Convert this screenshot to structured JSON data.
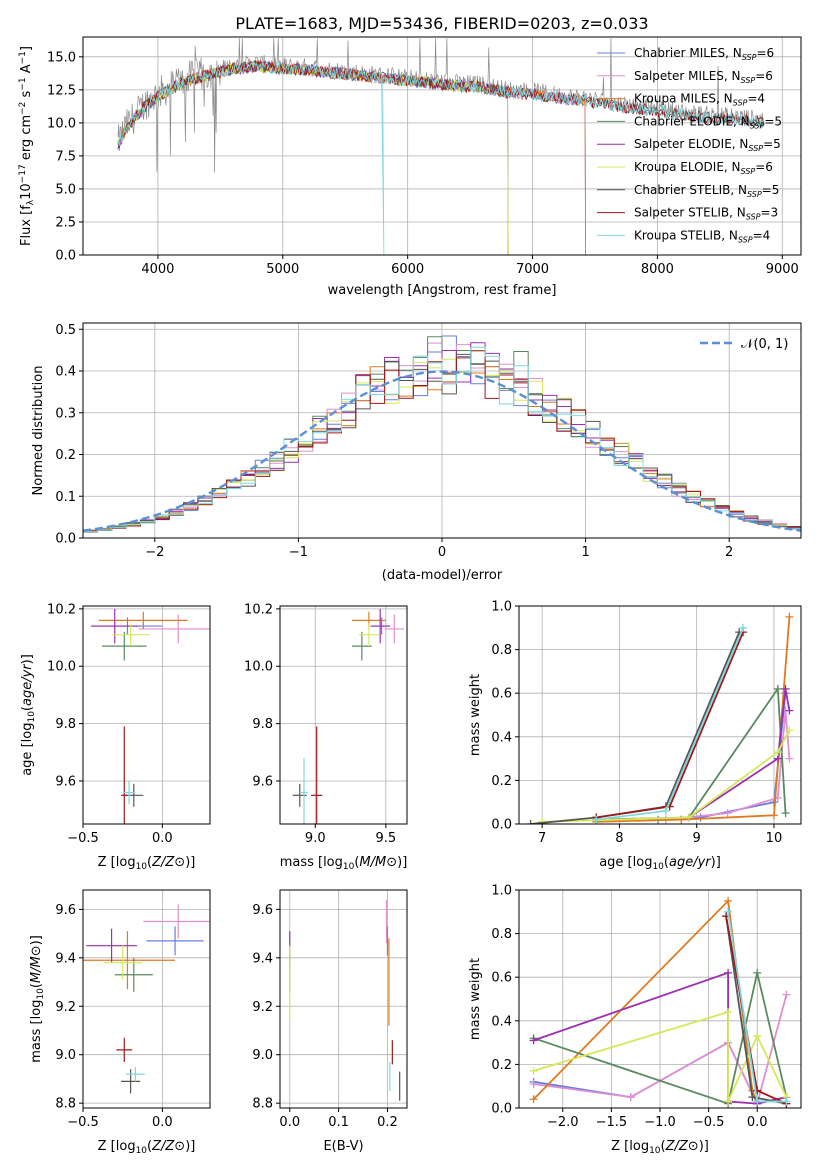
{
  "title": "PLATE=1683, MJD=53436, FIBERID=0203, z=0.033",
  "colors": {
    "Chabrier MILES": "#6a7fe0",
    "Salpeter MILES": "#e08fd0",
    "Kroupa MILES": "#e07a20",
    "Chabrier ELODIE": "#5a8a60",
    "Salpeter ELODIE": "#9a2fb0",
    "Kroupa ELODIE": "#d4e85a",
    "Chabrier STELIB": "#555555",
    "Salpeter STELIB": "#a01818",
    "Kroupa STELIB": "#7fd8e0",
    "gaussian": "#5b8fd6"
  },
  "chart_data": [
    {
      "id": "spectrum",
      "type": "line",
      "xlabel": "wavelength [Angstrom, rest frame]",
      "ylabel_parts": [
        "Flux [f",
        "λ",
        "10",
        "−17",
        " erg cm",
        "−2",
        " s",
        "−1",
        " A",
        "−1",
        "]"
      ],
      "xlim": [
        3400,
        9150
      ],
      "ylim": [
        0,
        16.5
      ],
      "xticks": [
        4000,
        5000,
        6000,
        7000,
        8000,
        9000
      ],
      "yticks": [
        0.0,
        2.5,
        5.0,
        7.5,
        10.0,
        12.5,
        15.0
      ],
      "legend": [
        {
          "name": "Chabrier MILES",
          "nssp": "6"
        },
        {
          "name": "Salpeter MILES",
          "nssp": "6"
        },
        {
          "name": "Kroupa MILES",
          "nssp": "4"
        },
        {
          "name": "Chabrier ELODIE",
          "nssp": "5"
        },
        {
          "name": "Salpeter ELODIE",
          "nssp": "5"
        },
        {
          "name": "Kroupa ELODIE",
          "nssp": "6"
        },
        {
          "name": "Chabrier STELIB",
          "nssp": "5"
        },
        {
          "name": "Salpeter STELIB",
          "nssp": "3"
        },
        {
          "name": "Kroupa STELIB",
          "nssp": "4"
        }
      ],
      "data_envelope": {
        "x": [
          3680,
          3750,
          3900,
          4000,
          4200,
          4400,
          4600,
          4800,
          5000,
          5200,
          5400,
          5600,
          5800,
          6000,
          6200,
          6400,
          6600,
          6800,
          7000,
          7200,
          7400,
          7600,
          7800,
          8000,
          8200,
          8400,
          8600,
          8800
        ],
        "y": [
          8.5,
          9.8,
          11.5,
          12.2,
          13.3,
          13.8,
          14.3,
          14.5,
          14.3,
          14.2,
          14.0,
          13.8,
          13.6,
          13.4,
          13.2,
          13.0,
          12.9,
          12.5,
          12.4,
          12.1,
          11.9,
          11.6,
          11.3,
          11.1,
          10.8,
          10.6,
          10.5,
          10.3
        ]
      }
    },
    {
      "id": "residuals",
      "type": "bar",
      "xlabel": "(data-model)/error",
      "ylabel": "Normed distribution",
      "xlim": [
        -2.5,
        2.5
      ],
      "ylim": [
        0,
        0.515
      ],
      "xticks": [
        -2,
        -1,
        0,
        1,
        2
      ],
      "yticks": [
        0.0,
        0.1,
        0.2,
        0.3,
        0.4,
        0.5
      ],
      "gaussian_label": "𝒩(0, 1)",
      "bin_width": 0.1,
      "approx_peak": 0.49
    },
    {
      "id": "age_vs_Z",
      "type": "scatter",
      "xlabel": "Z [log10(Z/Z⊙)]",
      "ylabel": "age [log10(age/yr)]",
      "xlim": [
        -0.5,
        0.3
      ],
      "ylim": [
        9.45,
        10.21
      ],
      "xticks": [
        -0.5,
        0.0
      ],
      "yticks": [
        9.6,
        9.8,
        10.0,
        10.2
      ],
      "points": [
        {
          "model": "Chabrier MILES",
          "x": -0.22,
          "y": 10.14,
          "xerr": 0.22,
          "yerr": 0.03
        },
        {
          "model": "Salpeter MILES",
          "x": 0.1,
          "y": 10.13,
          "xerr": 0.25,
          "yerr": 0.05
        },
        {
          "model": "Kroupa MILES",
          "x": -0.12,
          "y": 10.16,
          "xerr": 0.28,
          "yerr": 0.03
        },
        {
          "model": "Chabrier ELODIE",
          "x": -0.24,
          "y": 10.07,
          "xerr": 0.14,
          "yerr": 0.05
        },
        {
          "model": "Salpeter ELODIE",
          "x": -0.3,
          "y": 10.14,
          "xerr": 0.15,
          "yerr": 0.06
        },
        {
          "model": "Kroupa ELODIE",
          "x": -0.2,
          "y": 10.11,
          "xerr": 0.12,
          "yerr": 0.04
        },
        {
          "model": "Chabrier STELIB",
          "x": -0.18,
          "y": 9.55,
          "xerr": 0.06,
          "yerr": 0.04
        },
        {
          "model": "Salpeter STELIB",
          "x": -0.24,
          "y": 9.55,
          "xerr": 0.02,
          "yerr": 0.24
        },
        {
          "model": "Kroupa STELIB",
          "x": -0.21,
          "y": 9.56,
          "xerr": 0.04,
          "yerr": 0.04
        }
      ]
    },
    {
      "id": "age_vs_mass",
      "type": "scatter",
      "xlabel": "mass [log10(M/M⊙)]",
      "ylabel": "",
      "xlim": [
        8.75,
        9.65
      ],
      "ylim": [
        9.45,
        10.21
      ],
      "xticks": [
        9.0,
        9.5
      ],
      "yticks": [
        9.6,
        9.8,
        10.0,
        10.2
      ],
      "points": [
        {
          "model": "Chabrier MILES",
          "x": 9.47,
          "y": 10.14,
          "xerr": 0.06,
          "yerr": 0.03
        },
        {
          "model": "Salpeter MILES",
          "x": 9.56,
          "y": 10.13,
          "xerr": 0.07,
          "yerr": 0.05
        },
        {
          "model": "Kroupa MILES",
          "x": 9.38,
          "y": 10.16,
          "xerr": 0.12,
          "yerr": 0.03
        },
        {
          "model": "Chabrier ELODIE",
          "x": 9.33,
          "y": 10.07,
          "xerr": 0.07,
          "yerr": 0.05
        },
        {
          "model": "Salpeter ELODIE",
          "x": 9.46,
          "y": 10.14,
          "xerr": 0.07,
          "yerr": 0.06
        },
        {
          "model": "Kroupa ELODIE",
          "x": 9.38,
          "y": 10.11,
          "xerr": 0.07,
          "yerr": 0.04
        },
        {
          "model": "Chabrier STELIB",
          "x": 8.89,
          "y": 9.55,
          "xerr": 0.05,
          "yerr": 0.04
        },
        {
          "model": "Salpeter STELIB",
          "x": 9.01,
          "y": 9.55,
          "xerr": 0.04,
          "yerr": 0.24
        },
        {
          "model": "Kroupa STELIB",
          "x": 8.92,
          "y": 9.56,
          "xerr": 0.03,
          "yerr": 0.12
        }
      ]
    },
    {
      "id": "massweight_vs_age",
      "type": "line",
      "xlabel": "age [log10(age/yr)]",
      "ylabel": "mass weight",
      "xlim": [
        6.7,
        10.35
      ],
      "ylim": [
        0,
        1.0
      ],
      "xticks": [
        7,
        8,
        9,
        10
      ],
      "yticks": [
        0.0,
        0.2,
        0.4,
        0.6,
        0.8,
        1.0
      ],
      "series": [
        {
          "model": "Chabrier MILES",
          "x": [
            8.5,
            9.05,
            10.0,
            10.15
          ],
          "y": [
            0.02,
            0.03,
            0.1,
            0.6
          ]
        },
        {
          "model": "Salpeter MILES",
          "x": [
            8.6,
            9.4,
            10.05,
            10.15,
            10.2
          ],
          "y": [
            0.02,
            0.05,
            0.12,
            0.52,
            0.3
          ]
        },
        {
          "model": "Kroupa MILES",
          "x": [
            7.7,
            8.8,
            10.0,
            10.2
          ],
          "y": [
            0.01,
            0.02,
            0.04,
            0.95
          ]
        },
        {
          "model": "Chabrier ELODIE",
          "x": [
            7.7,
            8.9,
            10.05,
            10.15
          ],
          "y": [
            0.02,
            0.03,
            0.62,
            0.05
          ]
        },
        {
          "model": "Salpeter ELODIE",
          "x": [
            8.9,
            10.05,
            10.15,
            10.2
          ],
          "y": [
            0.03,
            0.3,
            0.62,
            0.52
          ]
        },
        {
          "model": "Kroupa ELODIE",
          "x": [
            7.0,
            8.9,
            10.05,
            10.2
          ],
          "y": [
            0.01,
            0.03,
            0.33,
            0.43
          ]
        },
        {
          "model": "Chabrier STELIB",
          "x": [
            6.85,
            7.7,
            8.6,
            9.55
          ],
          "y": [
            0.0,
            0.03,
            0.08,
            0.88
          ]
        },
        {
          "model": "Salpeter STELIB",
          "x": [
            7.7,
            8.65,
            9.6
          ],
          "y": [
            0.03,
            0.08,
            0.88
          ]
        },
        {
          "model": "Kroupa STELIB",
          "x": [
            7.7,
            8.6,
            9.6
          ],
          "y": [
            0.02,
            0.06,
            0.9
          ]
        }
      ]
    },
    {
      "id": "mass_vs_Z",
      "type": "scatter",
      "xlabel": "Z [log10(Z/Z⊙)]",
      "ylabel": "mass [log10(M/M⊙)]",
      "xlim": [
        -0.5,
        0.3
      ],
      "ylim": [
        8.78,
        9.68
      ],
      "xticks": [
        -0.5,
        0.0
      ],
      "yticks": [
        8.8,
        9.0,
        9.2,
        9.4,
        9.6
      ],
      "points": [
        {
          "model": "Chabrier MILES",
          "x": 0.08,
          "y": 9.47,
          "xerr": 0.18,
          "yerr": 0.06
        },
        {
          "model": "Salpeter MILES",
          "x": 0.1,
          "y": 9.55,
          "xerr": 0.22,
          "yerr": 0.07
        },
        {
          "model": "Kroupa MILES",
          "x": -0.22,
          "y": 9.39,
          "xerr": 0.3,
          "yerr": 0.12
        },
        {
          "model": "Chabrier ELODIE",
          "x": -0.18,
          "y": 9.33,
          "xerr": 0.12,
          "yerr": 0.07
        },
        {
          "model": "Salpeter ELODIE",
          "x": -0.32,
          "y": 9.45,
          "xerr": 0.16,
          "yerr": 0.07
        },
        {
          "model": "Kroupa ELODIE",
          "x": -0.25,
          "y": 9.38,
          "xerr": 0.12,
          "yerr": 0.07
        },
        {
          "model": "Chabrier STELIB",
          "x": -0.2,
          "y": 8.89,
          "xerr": 0.06,
          "yerr": 0.05
        },
        {
          "model": "Salpeter STELIB",
          "x": -0.24,
          "y": 9.02,
          "xerr": 0.05,
          "yerr": 0.05
        },
        {
          "model": "Kroupa STELIB",
          "x": -0.17,
          "y": 8.92,
          "xerr": 0.06,
          "yerr": 0.03
        }
      ]
    },
    {
      "id": "mass_vs_EBV",
      "type": "scatter",
      "xlabel": "E(B-V)",
      "ylabel": "",
      "xlim": [
        -0.02,
        0.24
      ],
      "ylim": [
        8.78,
        9.68
      ],
      "xticks": [
        0.0,
        0.1,
        0.2
      ],
      "yticks": [
        8.8,
        9.0,
        9.2,
        9.4,
        9.6
      ],
      "points": [
        {
          "model": "Chabrier MILES",
          "x": 0.2,
          "y": 9.47,
          "xerr": 0.0,
          "yerr": 0.06
        },
        {
          "model": "Salpeter MILES",
          "x": 0.198,
          "y": 9.55,
          "xerr": 0.0,
          "yerr": 0.09
        },
        {
          "model": "Kroupa MILES",
          "x": 0.203,
          "y": 9.3,
          "xerr": 0.0,
          "yerr": 0.18
        },
        {
          "model": "Chabrier ELODIE",
          "x": 0.0,
          "y": 9.33,
          "xerr": 0.0,
          "yerr": 0.07
        },
        {
          "model": "Salpeter ELODIE",
          "x": 0.0,
          "y": 9.45,
          "xerr": 0.0,
          "yerr": 0.06
        },
        {
          "model": "Kroupa ELODIE",
          "x": 0.0,
          "y": 9.3,
          "xerr": 0.0,
          "yerr": 0.15
        },
        {
          "model": "Chabrier STELIB",
          "x": 0.225,
          "y": 8.87,
          "xerr": 0.0,
          "yerr": 0.06
        },
        {
          "model": "Salpeter STELIB",
          "x": 0.21,
          "y": 9.01,
          "xerr": 0.0,
          "yerr": 0.05
        },
        {
          "model": "Kroupa STELIB",
          "x": 0.205,
          "y": 8.91,
          "xerr": 0.0,
          "yerr": 0.06
        }
      ]
    },
    {
      "id": "massweight_vs_Z",
      "type": "line",
      "xlabel": "Z [log10(Z/Z⊙)]",
      "ylabel": "mass weight",
      "xlim": [
        -2.45,
        0.45
      ],
      "ylim": [
        0,
        1.0
      ],
      "xticks": [
        -2.0,
        -1.5,
        -1.0,
        -0.5,
        0.0
      ],
      "yticks": [
        0.0,
        0.2,
        0.4,
        0.6,
        0.8,
        1.0
      ],
      "series": [
        {
          "model": "Chabrier MILES",
          "x": [
            -2.3,
            -1.3,
            -0.3,
            0.0,
            0.3
          ],
          "y": [
            0.12,
            0.05,
            0.3,
            0.02,
            0.05
          ]
        },
        {
          "model": "Salpeter MILES",
          "x": [
            -2.3,
            -1.3,
            -0.3,
            0.0,
            0.3
          ],
          "y": [
            0.11,
            0.05,
            0.3,
            0.02,
            0.52
          ]
        },
        {
          "model": "Kroupa MILES",
          "x": [
            -2.3,
            -0.3,
            -0.05,
            0.0,
            0.3
          ],
          "y": [
            0.04,
            0.95,
            0.08,
            0.02,
            0.05
          ]
        },
        {
          "model": "Chabrier ELODIE",
          "x": [
            -2.3,
            -0.3,
            0.0,
            0.3
          ],
          "y": [
            0.32,
            0.02,
            0.62,
            0.05
          ]
        },
        {
          "model": "Salpeter ELODIE",
          "x": [
            -2.3,
            -0.3,
            -0.3,
            0.0,
            0.3
          ],
          "y": [
            0.31,
            0.62,
            0.03,
            0.02,
            0.05
          ]
        },
        {
          "model": "Kroupa ELODIE",
          "x": [
            -2.3,
            -0.3,
            -0.3,
            0.0,
            0.3
          ],
          "y": [
            0.17,
            0.44,
            0.03,
            0.33,
            0.05
          ]
        },
        {
          "model": "Chabrier STELIB",
          "x": [
            -0.32,
            -0.05,
            0.3
          ],
          "y": [
            0.88,
            0.05,
            0.02
          ]
        },
        {
          "model": "Salpeter STELIB",
          "x": [
            -0.32,
            0.0,
            0.3
          ],
          "y": [
            0.88,
            0.08,
            0.02
          ]
        },
        {
          "model": "Kroupa STELIB",
          "x": [
            -0.3,
            0.0,
            0.3
          ],
          "y": [
            0.9,
            0.03,
            0.03
          ]
        }
      ]
    }
  ]
}
